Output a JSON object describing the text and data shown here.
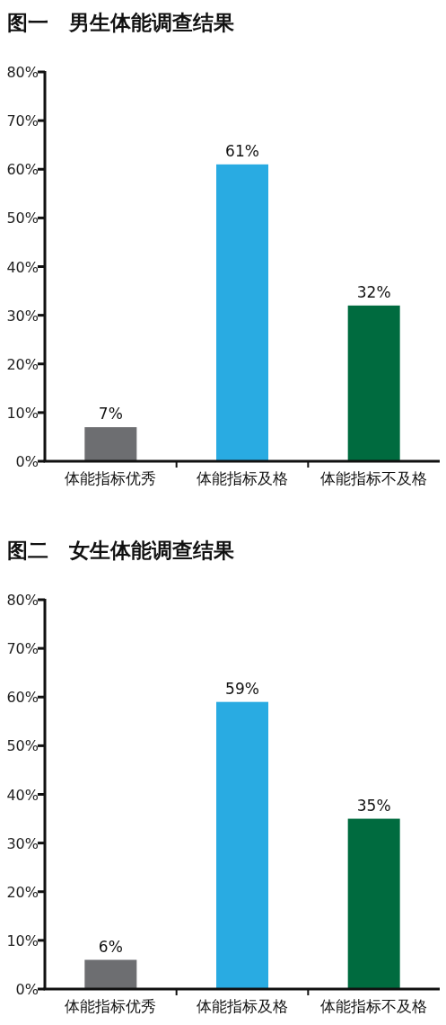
{
  "chart_data": [
    {
      "type": "bar",
      "title": "图一　男生体能调查结果",
      "categories": [
        "体能指标优秀",
        "体能指标及格",
        "体能指标不及格"
      ],
      "values": [
        7,
        61,
        32
      ],
      "colors": [
        "#6d6e71",
        "#29abe2",
        "#006b3f"
      ],
      "value_labels": [
        "7%",
        "61%",
        "32%"
      ],
      "ylim": [
        0,
        80
      ],
      "yticks": [
        {
          "value": 0,
          "label": "0%"
        },
        {
          "value": 10,
          "label": "10%"
        },
        {
          "value": 20,
          "label": "20%"
        },
        {
          "value": 30,
          "label": "30%"
        },
        {
          "value": 40,
          "label": "40%"
        },
        {
          "value": 50,
          "label": "50%"
        },
        {
          "value": 60,
          "label": "60%"
        },
        {
          "value": 70,
          "label": "70%"
        },
        {
          "value": 80,
          "label": "80%"
        }
      ]
    },
    {
      "type": "bar",
      "title": "图二　女生体能调查结果",
      "categories": [
        "体能指标优秀",
        "体能指标及格",
        "体能指标不及格"
      ],
      "values": [
        6,
        59,
        35
      ],
      "colors": [
        "#6d6e71",
        "#29abe2",
        "#006b3f"
      ],
      "value_labels": [
        "6%",
        "59%",
        "35%"
      ],
      "ylim": [
        0,
        80
      ],
      "yticks": [
        {
          "value": 0,
          "label": "0%"
        },
        {
          "value": 10,
          "label": "10%"
        },
        {
          "value": 20,
          "label": "20%"
        },
        {
          "value": 30,
          "label": "30%"
        },
        {
          "value": 40,
          "label": "40%"
        },
        {
          "value": 50,
          "label": "50%"
        },
        {
          "value": 60,
          "label": "60%"
        },
        {
          "value": 70,
          "label": "70%"
        },
        {
          "value": 80,
          "label": "80%"
        }
      ]
    }
  ]
}
